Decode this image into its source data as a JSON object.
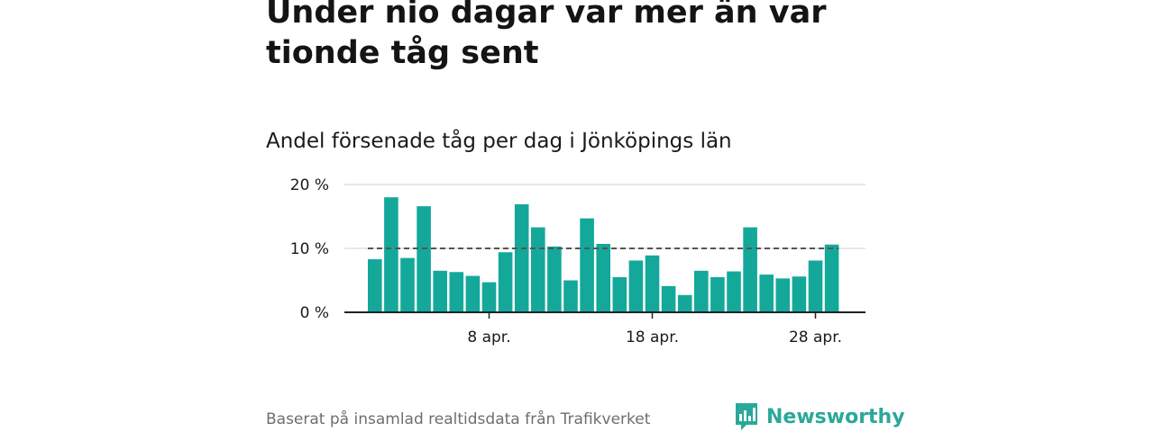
{
  "headline": "Under nio dagar var mer än var tionde tåg sent",
  "subtitle": "Andel försenade tåg per dag i Jönköpings län",
  "footer": {
    "source": "Baserat på insamlad realtidsdata från Trafikverket",
    "brand": "Newsworthy"
  },
  "colors": {
    "bar": "#14a89b",
    "reference_line": "#555555",
    "grid": "#d9d9d9",
    "axis": "#222222",
    "brand": "#2aa89a"
  },
  "chart_data": {
    "type": "bar",
    "title": "Andel försenade tåg per dag i Jönköpings län",
    "xlabel": "",
    "ylabel": "",
    "unit": "%",
    "x": [
      "1 apr.",
      "2 apr.",
      "3 apr.",
      "4 apr.",
      "5 apr.",
      "6 apr.",
      "7 apr.",
      "8 apr.",
      "9 apr.",
      "10 apr.",
      "11 apr.",
      "12 apr.",
      "13 apr.",
      "14 apr.",
      "15 apr.",
      "16 apr.",
      "17 apr.",
      "18 apr.",
      "19 apr.",
      "20 apr.",
      "21 apr.",
      "22 apr.",
      "23 apr.",
      "24 apr.",
      "25 apr.",
      "26 apr.",
      "27 apr.",
      "28 apr.",
      "29 apr."
    ],
    "values": [
      8.3,
      18.0,
      8.5,
      16.6,
      6.5,
      6.3,
      5.7,
      4.7,
      9.4,
      16.9,
      13.3,
      10.3,
      5.0,
      14.7,
      10.7,
      5.5,
      8.1,
      8.9,
      4.1,
      2.7,
      6.5,
      5.5,
      6.4,
      13.3,
      5.9,
      5.3,
      5.6,
      8.1,
      10.6
    ],
    "reference_line": 10,
    "ylim": [
      0,
      20
    ],
    "y_ticks": [
      0,
      10,
      20
    ],
    "y_tick_labels": [
      "0 %",
      "10 %",
      "20 %"
    ],
    "x_tick_labels": [
      "8 apr.",
      "18 apr.",
      "28 apr."
    ],
    "grid": true,
    "legend": "none"
  }
}
